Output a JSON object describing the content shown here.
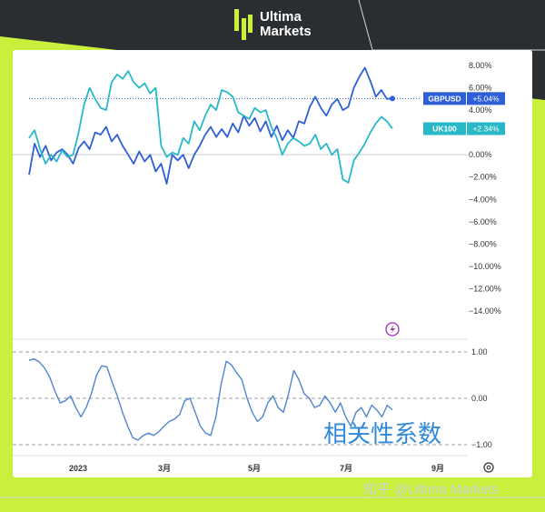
{
  "brand": {
    "line1": "Ultima",
    "line2": "Markets"
  },
  "watermark": "知乎 @Ultima Markets",
  "colors": {
    "gbpusd": "#2e5fd6",
    "uk100": "#29b8c8",
    "correlation": "#4f86cf",
    "accent": "#c8f03c"
  },
  "chart_data": [
    {
      "type": "line",
      "y_unit": "%",
      "ylim": [
        -14,
        8
      ],
      "yticks": [
        "8.00%",
        "6.00%",
        "4.00%",
        "2.00%",
        "0.00%",
        "−2.00%",
        "−4.00%",
        "−6.00%",
        "−8.00%",
        "−10.00%",
        "−12.00%",
        "−14.00%"
      ],
      "xticks": [
        "2023",
        "3月",
        "5月",
        "7月",
        "9月"
      ],
      "series": [
        {
          "name": "GBPUSD",
          "last_label": "+5.04%",
          "values": [
            -1.8,
            1.0,
            -0.2,
            0.8,
            -0.5,
            0.2,
            0.5,
            0.0,
            -0.8,
            0.6,
            1.2,
            0.5,
            2.0,
            1.8,
            2.5,
            1.2,
            1.8,
            0.8,
            0.0,
            -0.8,
            0.3,
            -0.6,
            0.0,
            -1.5,
            -0.8,
            -2.6,
            0.0,
            -0.5,
            0.0,
            -1.2,
            0.0,
            0.8,
            1.8,
            2.5,
            1.6,
            2.3,
            1.6,
            2.8,
            2.0,
            3.5,
            2.6,
            3.3,
            2.1,
            3.0,
            1.6,
            2.6,
            1.3,
            2.2,
            1.5,
            3.0,
            2.8,
            4.3,
            5.2,
            4.2,
            3.5,
            4.5,
            5.0,
            4.0,
            4.3,
            6.0,
            7.0,
            7.8,
            6.6,
            5.2,
            5.8,
            5.0,
            5.04
          ]
        },
        {
          "name": "UK100",
          "last_label": "+2.34%",
          "values": [
            1.5,
            2.2,
            0.5,
            -0.8,
            0.0,
            -0.6,
            0.4,
            -0.2,
            0.0,
            2.0,
            4.5,
            6.0,
            5.0,
            4.2,
            4.0,
            6.5,
            7.2,
            6.8,
            7.5,
            6.5,
            6.0,
            6.4,
            5.5,
            6.0,
            0.8,
            -0.2,
            0.2,
            0.0,
            1.5,
            1.0,
            3.0,
            2.2,
            3.5,
            4.5,
            4.0,
            5.8,
            5.6,
            5.2,
            3.8,
            3.5,
            3.2,
            4.2,
            3.8,
            4.0,
            2.5,
            1.5,
            0.0,
            1.0,
            1.5,
            1.2,
            0.8,
            1.0,
            1.8,
            0.5,
            1.0,
            0.0,
            0.5,
            -2.2,
            -2.5,
            -0.5,
            0.2,
            1.0,
            2.0,
            2.8,
            3.4,
            3.0,
            2.34
          ]
        }
      ]
    },
    {
      "type": "line",
      "title": "相关性系数",
      "ylim": [
        -1,
        1
      ],
      "yticks": [
        "1.00",
        "0.00",
        "−1.00"
      ],
      "series": [
        {
          "values": [
            0.82,
            0.85,
            0.78,
            0.65,
            0.45,
            0.15,
            -0.1,
            -0.05,
            0.05,
            -0.2,
            -0.4,
            -0.2,
            0.1,
            0.5,
            0.7,
            0.68,
            0.35,
            0.05,
            -0.3,
            -0.6,
            -0.85,
            -0.9,
            -0.8,
            -0.75,
            -0.8,
            -0.72,
            -0.6,
            -0.5,
            -0.45,
            -0.35,
            -0.05,
            0.0,
            -0.3,
            -0.6,
            -0.75,
            -0.8,
            -0.4,
            0.3,
            0.8,
            0.72,
            0.55,
            0.4,
            0.0,
            -0.3,
            -0.5,
            -0.4,
            -0.1,
            0.05,
            -0.2,
            -0.3,
            0.1,
            0.6,
            0.4,
            0.1,
            0.0,
            -0.2,
            -0.15,
            0.05,
            -0.1,
            -0.3,
            -0.1,
            -0.4,
            -0.6,
            -0.3,
            -0.2,
            -0.4,
            -0.15,
            -0.25,
            -0.4,
            -0.15,
            -0.25
          ]
        }
      ]
    }
  ]
}
